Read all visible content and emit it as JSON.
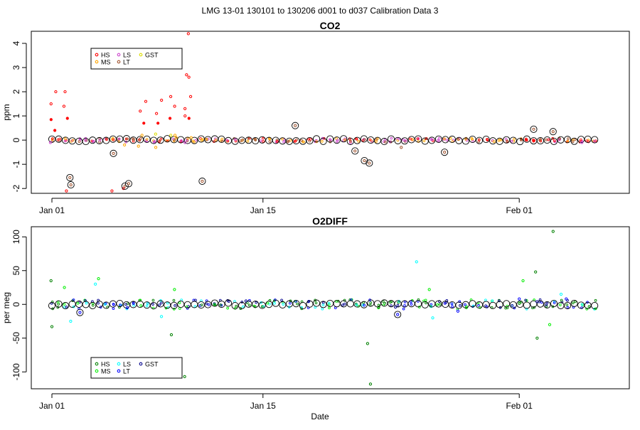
{
  "figure_title": "LMG   13-01    130101 to 130206    d001 to d037   Calibration Data 3",
  "x_ticks": [
    "Jan 01",
    "Jan 15",
    "Feb 01"
  ],
  "x_label": "Date",
  "colors": {
    "HS": "#ff0000",
    "MS": "#ffa500",
    "LS": "#cc44cc",
    "LT": "#a0522d",
    "GST": "#dddd00",
    "HS2": "#008000",
    "MS2": "#00ee00",
    "LS2": "#00ffff",
    "LT2": "#0000ff",
    "GST2": "#00008b",
    "mean": "#000000"
  },
  "chart_data": [
    {
      "type": "scatter",
      "title": "CO2",
      "xlabel": "",
      "ylabel": "ppm",
      "x_range": [
        "2013-01-01",
        "2013-02-06"
      ],
      "ylim": [
        -2.2,
        4.5
      ],
      "y_ticks": [
        -2,
        -1,
        0,
        1,
        2,
        3,
        4
      ],
      "x_ticks": [
        "Jan 01",
        "Jan 15",
        "Feb 01"
      ],
      "legend": {
        "position": "top-left",
        "entries": [
          "HS",
          "MS",
          "LS",
          "LT",
          "GST"
        ]
      },
      "series": [
        {
          "name": "HS",
          "color": "#ff0000",
          "points": [
            {
              "x": "2013-01-01",
              "y": 0.4
            },
            {
              "x": "2013-01-01",
              "y": 0.85
            },
            {
              "x": "2013-01-01",
              "y": 2.0
            },
            {
              "x": "2013-01-01",
              "y": 1.5
            },
            {
              "x": "2013-01-02",
              "y": 0.9
            },
            {
              "x": "2013-01-02",
              "y": 2.0
            },
            {
              "x": "2013-01-02",
              "y": 1.4
            },
            {
              "x": "2013-01-02",
              "y": -2.1
            },
            {
              "x": "2013-01-05",
              "y": -2.1
            },
            {
              "x": "2013-01-06",
              "y": -2.0
            },
            {
              "x": "2013-01-07",
              "y": 0.7
            },
            {
              "x": "2013-01-07",
              "y": 1.6
            },
            {
              "x": "2013-01-07",
              "y": 1.2
            },
            {
              "x": "2013-01-08",
              "y": 0.7
            },
            {
              "x": "2013-01-08",
              "y": 1.65
            },
            {
              "x": "2013-01-08",
              "y": 1.1
            },
            {
              "x": "2013-01-09",
              "y": 1.8
            },
            {
              "x": "2013-01-09",
              "y": 1.4
            },
            {
              "x": "2013-01-09",
              "y": 0.9
            },
            {
              "x": "2013-01-10",
              "y": 4.4
            },
            {
              "x": "2013-01-10",
              "y": 2.7
            },
            {
              "x": "2013-01-10",
              "y": 2.6
            },
            {
              "x": "2013-01-10",
              "y": 1.3
            },
            {
              "x": "2013-01-10",
              "y": 0.9
            },
            {
              "x": "2013-01-10",
              "y": 1.8
            },
            {
              "x": "2013-01-10",
              "y": 1.0
            }
          ]
        },
        {
          "name": "MS",
          "color": "#ffa500",
          "points": [
            {
              "x": "2013-01-06",
              "y": -0.2
            },
            {
              "x": "2013-01-07",
              "y": -0.25
            },
            {
              "x": "2013-01-07",
              "y": 0.2
            },
            {
              "x": "2013-01-08",
              "y": -0.3
            },
            {
              "x": "2013-01-09",
              "y": 0.1
            },
            {
              "x": "2013-01-09",
              "y": 0.2
            },
            {
              "x": "2013-01-10",
              "y": 0.1
            }
          ]
        },
        {
          "name": "LS",
          "color": "#cc44cc",
          "points": [
            {
              "x": "2013-01-01",
              "y": -0.1
            },
            {
              "x": "2013-01-10",
              "y": -0.1
            },
            {
              "x": "2013-01-21",
              "y": -0.1
            },
            {
              "x": "2013-02-05",
              "y": -0.1
            }
          ]
        },
        {
          "name": "LT",
          "color": "#a0522d",
          "points": [
            {
              "x": "2013-01-02",
              "y": -1.85
            },
            {
              "x": "2013-01-02",
              "y": -1.55
            },
            {
              "x": "2013-01-05",
              "y": -0.55
            },
            {
              "x": "2013-01-06",
              "y": -1.9
            },
            {
              "x": "2013-01-06",
              "y": -1.8
            },
            {
              "x": "2013-01-11",
              "y": -1.7
            },
            {
              "x": "2013-01-17",
              "y": 0.6
            },
            {
              "x": "2013-01-21",
              "y": -0.45
            },
            {
              "x": "2013-01-22",
              "y": -0.85
            },
            {
              "x": "2013-01-22",
              "y": -0.95
            },
            {
              "x": "2013-01-24",
              "y": -0.3
            },
            {
              "x": "2013-01-27",
              "y": -0.5
            },
            {
              "x": "2013-02-02",
              "y": 0.45
            },
            {
              "x": "2013-02-03",
              "y": 0.35
            }
          ]
        },
        {
          "name": "GST",
          "color": "#dddd00",
          "points": [
            {
              "x": "2013-01-08",
              "y": 0.25
            },
            {
              "x": "2013-01-09",
              "y": 0.2
            }
          ]
        }
      ]
    },
    {
      "type": "scatter",
      "title": "O2DIFF",
      "xlabel": "Date",
      "ylabel": "per meg",
      "x_range": [
        "2013-01-01",
        "2013-02-06"
      ],
      "ylim": [
        -125,
        115
      ],
      "y_ticks": [
        -100,
        -50,
        0,
        50,
        100
      ],
      "x_ticks": [
        "Jan 01",
        "Jan 15",
        "Feb 01"
      ],
      "legend": {
        "position": "bottom-left",
        "entries": [
          "HS",
          "MS",
          "LS",
          "LT",
          "GST"
        ]
      },
      "series": [
        {
          "name": "HS",
          "color": "#008000",
          "points": [
            {
              "x": "2013-01-01",
              "y": -33
            },
            {
              "x": "2013-01-01",
              "y": 35
            },
            {
              "x": "2013-01-09",
              "y": -45
            },
            {
              "x": "2013-01-10",
              "y": -107
            },
            {
              "x": "2013-01-22",
              "y": -58
            },
            {
              "x": "2013-01-22",
              "y": -118
            },
            {
              "x": "2013-02-02",
              "y": -50
            },
            {
              "x": "2013-02-02",
              "y": 48
            },
            {
              "x": "2013-02-03",
              "y": 108
            }
          ]
        },
        {
          "name": "MS",
          "color": "#00ee00",
          "points": [
            {
              "x": "2013-01-02",
              "y": 25
            },
            {
              "x": "2013-01-04",
              "y": 38
            },
            {
              "x": "2013-01-09",
              "y": 22
            },
            {
              "x": "2013-01-26",
              "y": 22
            },
            {
              "x": "2013-02-01",
              "y": 35
            },
            {
              "x": "2013-02-03",
              "y": -30
            }
          ]
        },
        {
          "name": "LS",
          "color": "#00ffff",
          "points": [
            {
              "x": "2013-01-02",
              "y": -25
            },
            {
              "x": "2013-01-04",
              "y": 30
            },
            {
              "x": "2013-01-08",
              "y": -18
            },
            {
              "x": "2013-01-25",
              "y": 63
            },
            {
              "x": "2013-01-26",
              "y": -20
            },
            {
              "x": "2013-02-04",
              "y": 15
            }
          ]
        },
        {
          "name": "LT",
          "color": "#0000ff",
          "points": [
            {
              "x": "2013-01-03",
              "y": -12
            },
            {
              "x": "2013-01-06",
              "y": -5
            },
            {
              "x": "2013-01-24",
              "y": -15
            },
            {
              "x": "2013-01-28",
              "y": -10
            },
            {
              "x": "2013-02-01",
              "y": 8
            },
            {
              "x": "2013-02-04",
              "y": 8
            }
          ]
        },
        {
          "name": "GST",
          "color": "#00008b",
          "points": [
            {
              "x": "2013-01-14",
              "y": 5
            },
            {
              "x": "2013-01-24",
              "y": -4
            },
            {
              "x": "2013-02-02",
              "y": 4
            }
          ]
        }
      ]
    }
  ]
}
